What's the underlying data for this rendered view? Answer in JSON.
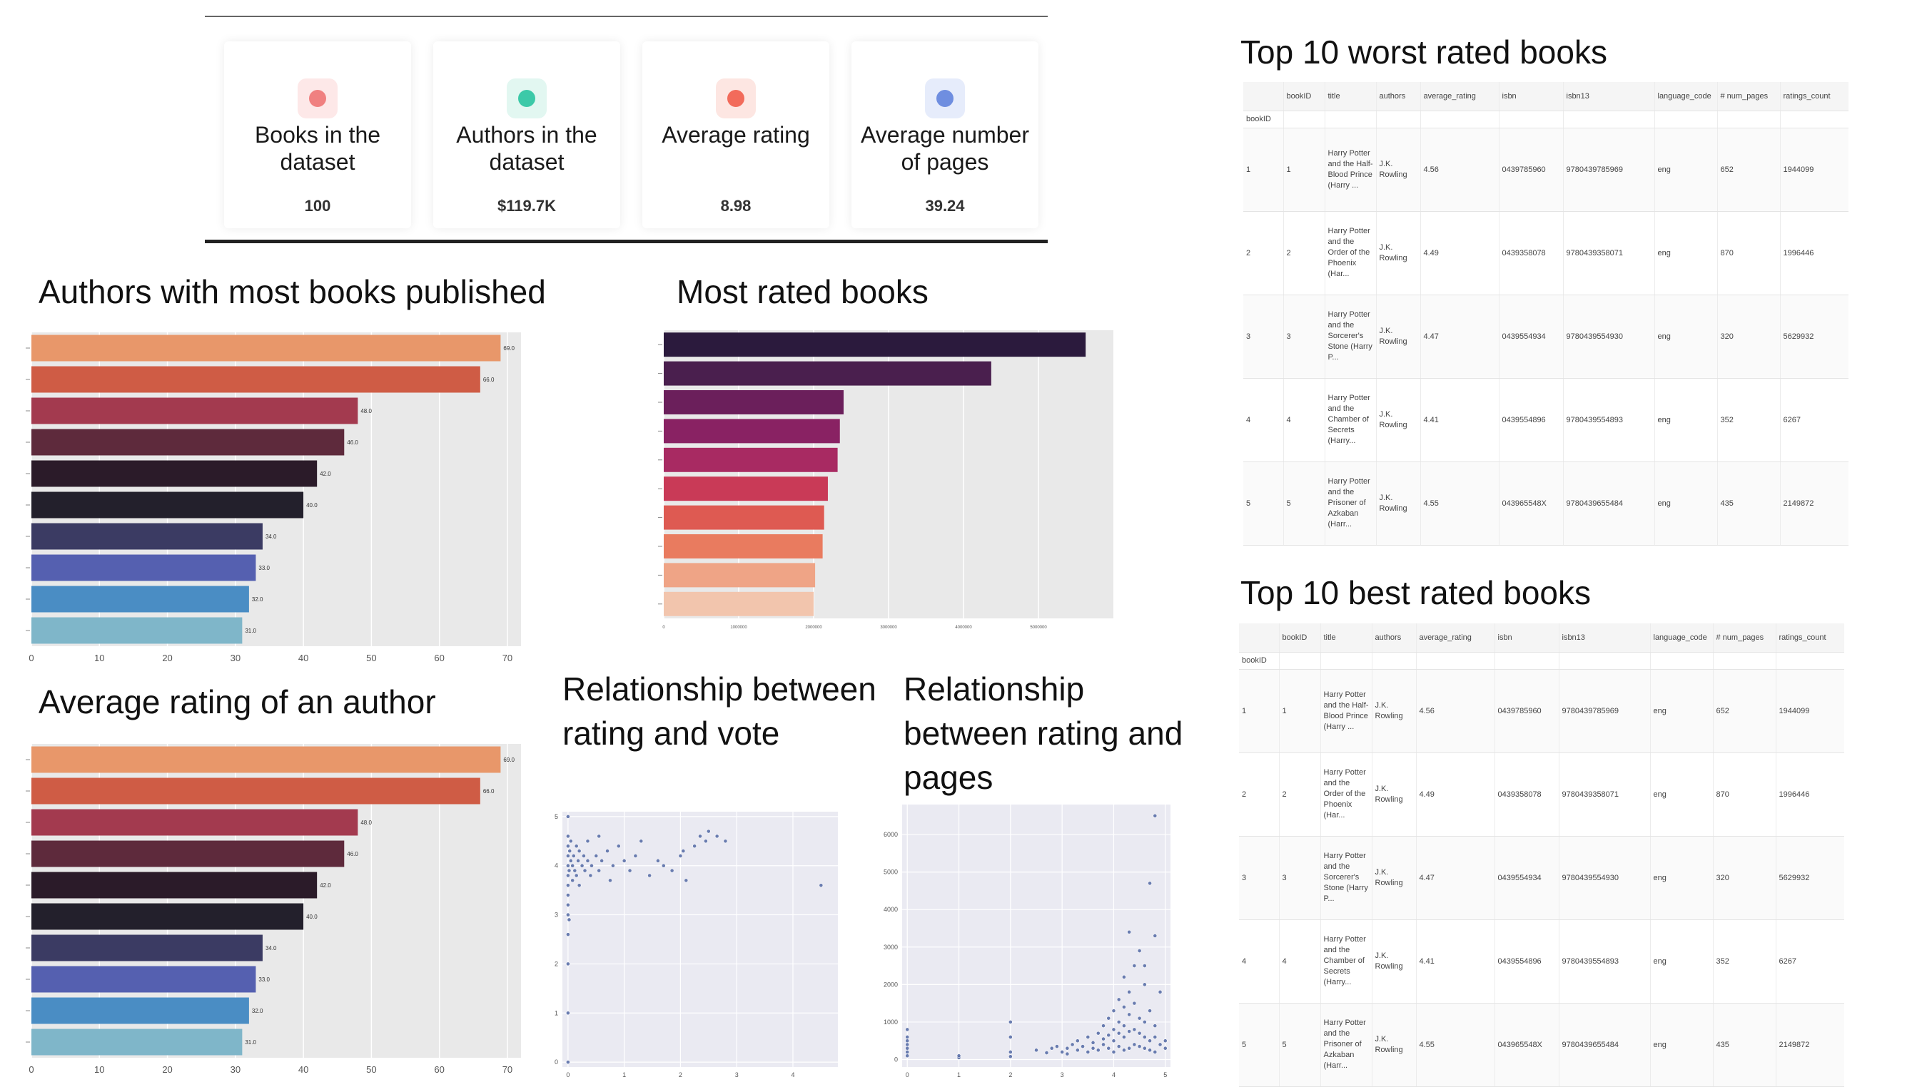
{
  "kpis": [
    {
      "label": "Books in the dataset",
      "value": "100",
      "icon": "people-icon",
      "color": "#f08080",
      "bg": "#fde8e8"
    },
    {
      "label": "Authors in the dataset",
      "value": "$119.7K",
      "icon": "coin-icon",
      "color": "#3cc9a8",
      "bg": "#e2f7f1"
    },
    {
      "label": "Average rating",
      "value": "8.98",
      "icon": "clock-icon",
      "color": "#f26b5b",
      "bg": "#fde6e2"
    },
    {
      "label": "Average number of pages",
      "value": "39.24",
      "icon": "calendar-icon",
      "color": "#6f8ee0",
      "bg": "#e6ecfb"
    }
  ],
  "titles": {
    "authors_most_books": "Authors with most books published",
    "most_rated_books": "Most rated books",
    "avg_rating_author": "Average rating of an author",
    "rating_vs_vote": "Relationship between rating and vote",
    "rating_vs_pages": "Relationship between rating and pages",
    "worst_books": "Top 10 worst rated books",
    "best_books": "Top 10 best rated books"
  },
  "palette": [
    "#e8976a",
    "#cf5c45",
    "#a33a4f",
    "#5e2a3c",
    "#2b1b29",
    "#23202c",
    "#3b3b63",
    "#5560b0",
    "#4a8dc4",
    "#7fb6c9"
  ],
  "rated_palette": [
    "#2b1a3d",
    "#4a1f4e",
    "#6b1f5b",
    "#892263",
    "#a82a62",
    "#c93a57",
    "#de5a52",
    "#e97b5f",
    "#efa486",
    "#f2c5ad"
  ],
  "chart_data": [
    {
      "id": "authors_most_books",
      "type": "bar",
      "orientation": "horizontal",
      "values": [
        69,
        66,
        48,
        46,
        42,
        40,
        34,
        33,
        32,
        31
      ],
      "value_labels": [
        "69.0",
        "66.0",
        "48.0",
        "46.0",
        "42.0",
        "40.0",
        "34.0",
        "33.0",
        "32.0",
        "31.0"
      ],
      "xlim": [
        0,
        72
      ],
      "xticks": [
        0,
        10,
        20,
        30,
        40,
        50,
        60,
        70
      ]
    },
    {
      "id": "most_rated_books",
      "type": "bar",
      "orientation": "horizontal",
      "values": [
        5629932,
        4370000,
        2400000,
        2350000,
        2320000,
        2190000,
        2140000,
        2120000,
        2020000,
        2000000
      ],
      "xlim": [
        0,
        6000000
      ],
      "xticks": [
        0,
        1000000,
        2000000,
        3000000,
        4000000,
        5000000
      ]
    },
    {
      "id": "avg_rating_author",
      "type": "bar",
      "orientation": "horizontal",
      "values": [
        69,
        66,
        48,
        46,
        42,
        40,
        34,
        33,
        32,
        31
      ],
      "value_labels": [
        "69.0",
        "66.0",
        "48.0",
        "46.0",
        "42.0",
        "40.0",
        "34.0",
        "33.0",
        "32.0",
        "31.0"
      ],
      "xlim": [
        0,
        72
      ],
      "xticks": [
        0,
        10,
        20,
        30,
        40,
        50,
        60,
        70
      ]
    },
    {
      "id": "rating_vs_vote",
      "type": "scatter",
      "xlim": [
        -0.1,
        4.8
      ],
      "ylim": [
        -0.1,
        5.1
      ],
      "xticks": [
        0,
        1,
        2,
        3,
        4
      ],
      "yticks": [
        0,
        1,
        2,
        3,
        4,
        5
      ],
      "points": [
        [
          0.0,
          5.0
        ],
        [
          0.0,
          4.0
        ],
        [
          0.0,
          3.0
        ],
        [
          0.0,
          2.0
        ],
        [
          0.0,
          1.0
        ],
        [
          0.0,
          0.0
        ],
        [
          0.0,
          4.6
        ],
        [
          0.0,
          4.4
        ],
        [
          0.0,
          4.2
        ],
        [
          0.0,
          3.8
        ],
        [
          0.0,
          3.6
        ],
        [
          0.0,
          3.4
        ],
        [
          0.0,
          3.2
        ],
        [
          0.0,
          2.6
        ],
        [
          0.02,
          2.9
        ],
        [
          0.02,
          3.9
        ],
        [
          0.03,
          4.3
        ],
        [
          0.05,
          4.5
        ],
        [
          0.05,
          4.1
        ],
        [
          0.08,
          3.7
        ],
        [
          0.08,
          4.0
        ],
        [
          0.1,
          4.2
        ],
        [
          0.12,
          3.9
        ],
        [
          0.15,
          4.4
        ],
        [
          0.15,
          3.8
        ],
        [
          0.18,
          4.1
        ],
        [
          0.2,
          4.3
        ],
        [
          0.2,
          3.6
        ],
        [
          0.25,
          4.0
        ],
        [
          0.28,
          4.2
        ],
        [
          0.3,
          3.9
        ],
        [
          0.35,
          4.5
        ],
        [
          0.35,
          4.1
        ],
        [
          0.4,
          3.8
        ],
        [
          0.42,
          4.0
        ],
        [
          0.5,
          4.2
        ],
        [
          0.55,
          4.6
        ],
        [
          0.55,
          3.9
        ],
        [
          0.6,
          4.1
        ],
        [
          0.7,
          4.3
        ],
        [
          0.75,
          3.7
        ],
        [
          0.8,
          4.0
        ],
        [
          0.9,
          4.4
        ],
        [
          1.0,
          4.1
        ],
        [
          1.1,
          3.9
        ],
        [
          1.2,
          4.2
        ],
        [
          1.3,
          4.5
        ],
        [
          1.45,
          3.8
        ],
        [
          1.6,
          4.1
        ],
        [
          1.7,
          4.0
        ],
        [
          1.85,
          3.9
        ],
        [
          2.0,
          4.2
        ],
        [
          2.05,
          4.3
        ],
        [
          2.1,
          3.7
        ],
        [
          2.25,
          4.4
        ],
        [
          2.35,
          4.6
        ],
        [
          2.45,
          4.5
        ],
        [
          2.5,
          4.7
        ],
        [
          2.65,
          4.6
        ],
        [
          2.8,
          4.5
        ],
        [
          4.5,
          3.6
        ]
      ]
    },
    {
      "id": "rating_vs_pages",
      "type": "scatter",
      "xlim": [
        -0.1,
        5.1
      ],
      "ylim": [
        -200,
        6800
      ],
      "xticks": [
        0,
        1,
        2,
        3,
        4,
        5
      ],
      "yticks": [
        0,
        1000,
        2000,
        3000,
        4000,
        5000,
        6000
      ],
      "points": [
        [
          0,
          300
        ],
        [
          0,
          400
        ],
        [
          0,
          200
        ],
        [
          0,
          500
        ],
        [
          0,
          600
        ],
        [
          0,
          800
        ],
        [
          0,
          100
        ],
        [
          1,
          50
        ],
        [
          1,
          100
        ],
        [
          2,
          80
        ],
        [
          2,
          200
        ],
        [
          2,
          1000
        ],
        [
          2,
          600
        ],
        [
          2.5,
          250
        ],
        [
          2.7,
          180
        ],
        [
          2.8,
          300
        ],
        [
          2.9,
          350
        ],
        [
          3.0,
          200
        ],
        [
          3.1,
          300
        ],
        [
          3.1,
          150
        ],
        [
          3.2,
          400
        ],
        [
          3.3,
          250
        ],
        [
          3.3,
          500
        ],
        [
          3.4,
          350
        ],
        [
          3.5,
          200
        ],
        [
          3.5,
          600
        ],
        [
          3.6,
          300
        ],
        [
          3.6,
          450
        ],
        [
          3.7,
          700
        ],
        [
          3.7,
          250
        ],
        [
          3.8,
          400
        ],
        [
          3.8,
          550
        ],
        [
          3.8,
          900
        ],
        [
          3.9,
          300
        ],
        [
          3.9,
          650
        ],
        [
          3.9,
          1100
        ],
        [
          4.0,
          200
        ],
        [
          4.0,
          500
        ],
        [
          4.0,
          800
        ],
        [
          4.0,
          1300
        ],
        [
          4.1,
          350
        ],
        [
          4.1,
          700
        ],
        [
          4.1,
          1000
        ],
        [
          4.1,
          1600
        ],
        [
          4.2,
          250
        ],
        [
          4.2,
          600
        ],
        [
          4.2,
          900
        ],
        [
          4.2,
          1400
        ],
        [
          4.2,
          2200
        ],
        [
          4.3,
          300
        ],
        [
          4.3,
          750
        ],
        [
          4.3,
          1200
        ],
        [
          4.3,
          1800
        ],
        [
          4.3,
          3400
        ],
        [
          4.4,
          400
        ],
        [
          4.4,
          800
        ],
        [
          4.4,
          1500
        ],
        [
          4.4,
          2500
        ],
        [
          4.5,
          350
        ],
        [
          4.5,
          700
        ],
        [
          4.5,
          1100
        ],
        [
          4.5,
          2900
        ],
        [
          4.6,
          300
        ],
        [
          4.6,
          600
        ],
        [
          4.6,
          1000
        ],
        [
          4.6,
          2000
        ],
        [
          4.6,
          2500
        ],
        [
          4.7,
          250
        ],
        [
          4.7,
          500
        ],
        [
          4.7,
          4700
        ],
        [
          4.7,
          1300
        ],
        [
          4.8,
          200
        ],
        [
          4.8,
          600
        ],
        [
          4.8,
          900
        ],
        [
          4.8,
          3300
        ],
        [
          4.8,
          6500
        ],
        [
          4.9,
          400
        ],
        [
          4.9,
          1800
        ],
        [
          5.0,
          300
        ],
        [
          5.0,
          500
        ]
      ]
    }
  ],
  "table": {
    "columns": [
      "bookID",
      "title",
      "authors",
      "average_rating",
      "isbn",
      "isbn13",
      "language_code",
      "# num_pages",
      "ratings_count"
    ],
    "index_name": "bookID",
    "rows": [
      {
        "idx": "1",
        "bookID": "1",
        "title": "Harry Potter and the Half-Blood Prince (Harry ...",
        "authors": "J.K. Rowling",
        "average_rating": "4.56",
        "isbn": "0439785960",
        "isbn13": "9780439785969",
        "language_code": "eng",
        "num_pages": "652",
        "ratings_count": "1944099"
      },
      {
        "idx": "2",
        "bookID": "2",
        "title": "Harry Potter and the Order of the Phoenix (Har...",
        "authors": "J.K. Rowling",
        "average_rating": "4.49",
        "isbn": "0439358078",
        "isbn13": "9780439358071",
        "language_code": "eng",
        "num_pages": "870",
        "ratings_count": "1996446"
      },
      {
        "idx": "3",
        "bookID": "3",
        "title": "Harry Potter and the Sorcerer's Stone (Harry P...",
        "authors": "J.K. Rowling",
        "average_rating": "4.47",
        "isbn": "0439554934",
        "isbn13": "9780439554930",
        "language_code": "eng",
        "num_pages": "320",
        "ratings_count": "5629932"
      },
      {
        "idx": "4",
        "bookID": "4",
        "title": "Harry Potter and the Chamber of Secrets (Harry...",
        "authors": "J.K. Rowling",
        "average_rating": "4.41",
        "isbn": "0439554896",
        "isbn13": "9780439554893",
        "language_code": "eng",
        "num_pages": "352",
        "ratings_count": "6267"
      },
      {
        "idx": "5",
        "bookID": "5",
        "title": "Harry Potter and the Prisoner of Azkaban (Harr...",
        "authors": "J.K. Rowling",
        "average_rating": "4.55",
        "isbn": "043965548X",
        "isbn13": "9780439655484",
        "language_code": "eng",
        "num_pages": "435",
        "ratings_count": "2149872"
      }
    ]
  }
}
